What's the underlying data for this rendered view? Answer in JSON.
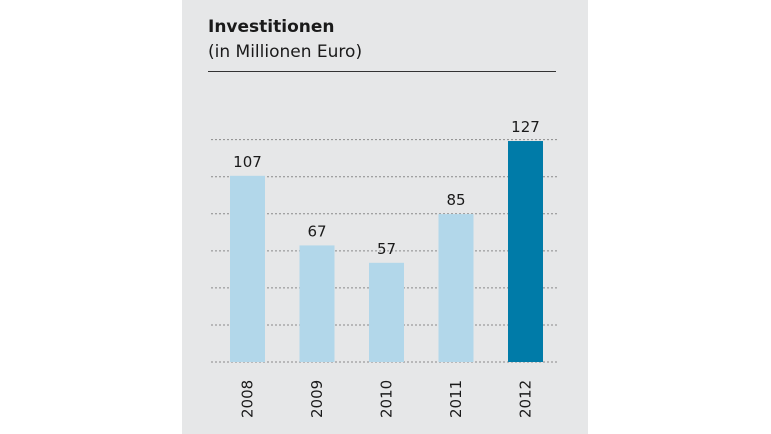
{
  "chart_data": {
    "type": "bar",
    "title": "Investitionen",
    "subtitle": "(in Millionen Euro)",
    "xlabel": "",
    "ylabel": "",
    "categories": [
      "2008",
      "2009",
      "2010",
      "2011",
      "2012"
    ],
    "values": [
      107,
      67,
      57,
      85,
      127
    ],
    "ylim": [
      0,
      150
    ],
    "grid": true,
    "bar_colors": [
      "#b2d7ea",
      "#b2d7ea",
      "#b2d7ea",
      "#b2d7ea",
      "#007ba8"
    ],
    "grid_color": "#8a8a8a",
    "label_color": "#1a1a1a"
  }
}
